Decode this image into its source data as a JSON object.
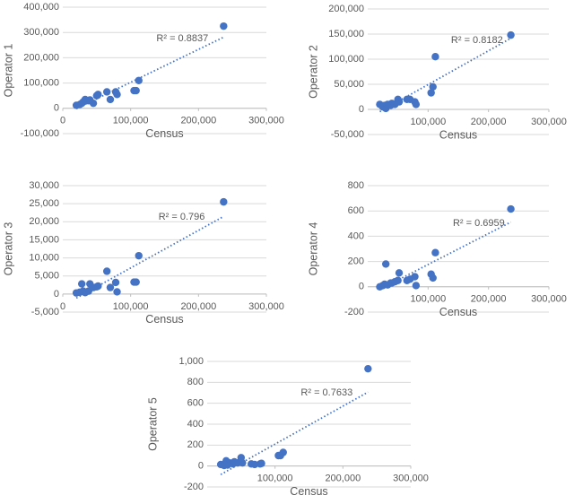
{
  "chart_data": [
    {
      "type": "scatter",
      "x_label": "Census",
      "y_label": "Operator 1",
      "annotation": "R² = 0.8837",
      "color": "#4472c4",
      "grid": true,
      "trendline": true,
      "x": [
        20000,
        25000,
        28000,
        30000,
        33000,
        38000,
        40000,
        45000,
        50000,
        52000,
        65000,
        70000,
        78000,
        80000,
        105000,
        108000,
        112000,
        237000
      ],
      "values": [
        12000,
        15000,
        20000,
        25000,
        35000,
        30000,
        33000,
        20000,
        50000,
        55000,
        65000,
        35000,
        65000,
        55000,
        70000,
        70000,
        110000,
        325000
      ],
      "xlim": [
        0,
        300000
      ],
      "xticks": [
        0,
        {
          "value": 100000,
          "label": "100,000"
        },
        {
          "value": 200000,
          "label": "200,000"
        },
        {
          "value": 300000,
          "label": "300,000"
        }
      ],
      "ylim": [
        -100000,
        400000
      ],
      "yticks": [
        {
          "value": -100000,
          "label": "-100,000"
        },
        0,
        {
          "value": 100000,
          "label": "100,000"
        },
        {
          "value": 200000,
          "label": "200,000"
        },
        {
          "value": 300000,
          "label": "300,000"
        },
        {
          "value": 400000,
          "label": "400,000"
        }
      ]
    },
    {
      "type": "scatter",
      "x_label": "Census",
      "y_label": "Operator 2",
      "annotation": "R² = 0.8182",
      "color": "#4472c4",
      "grid": true,
      "trendline": true,
      "x": [
        20000,
        25000,
        28000,
        30000,
        33000,
        38000,
        40000,
        45000,
        50000,
        52000,
        65000,
        70000,
        78000,
        80000,
        105000,
        108000,
        112000,
        237000
      ],
      "values": [
        10000,
        5000,
        8000,
        2000,
        10000,
        8000,
        12000,
        10000,
        20000,
        15000,
        20000,
        20000,
        15000,
        10000,
        33000,
        45000,
        105000,
        148000
      ],
      "xlim": [
        0,
        300000
      ],
      "xticks": [
        {
          "value": 100000,
          "label": "100,000"
        },
        {
          "value": 200000,
          "label": "200,000"
        },
        {
          "value": 300000,
          "label": "300,000"
        }
      ],
      "ylim": [
        -50000,
        200000
      ],
      "yticks": [
        {
          "value": -50000,
          "label": "-50,000"
        },
        0,
        {
          "value": 50000,
          "label": "50,000"
        },
        {
          "value": 100000,
          "label": "100,000"
        },
        {
          "value": 150000,
          "label": "150,000"
        },
        {
          "value": 200000,
          "label": "200,000"
        }
      ]
    },
    {
      "type": "scatter",
      "x_label": "Census",
      "y_label": "Operator 3",
      "annotation": "R² = 0.796",
      "color": "#4472c4",
      "grid": true,
      "trendline": true,
      "x": [
        20000,
        25000,
        28000,
        30000,
        33000,
        38000,
        40000,
        45000,
        50000,
        52000,
        65000,
        70000,
        78000,
        80000,
        105000,
        108000,
        112000,
        237000
      ],
      "values": [
        300,
        500,
        2800,
        800,
        400,
        800,
        2800,
        1800,
        2000,
        2200,
        6300,
        1800,
        3200,
        600,
        3300,
        3300,
        10600,
        25500
      ],
      "xlim": [
        0,
        300000
      ],
      "xticks": [
        0,
        {
          "value": 100000,
          "label": "100,000"
        },
        {
          "value": 200000,
          "label": "200,000"
        },
        {
          "value": 300000,
          "label": "300,000"
        }
      ],
      "ylim": [
        -5000,
        30000
      ],
      "yticks": [
        {
          "value": -5000,
          "label": "-5,000"
        },
        0,
        {
          "value": 5000,
          "label": "5,000"
        },
        {
          "value": 10000,
          "label": "10,000"
        },
        {
          "value": 15000,
          "label": "15,000"
        },
        {
          "value": 20000,
          "label": "20,000"
        },
        {
          "value": 25000,
          "label": "25,000"
        },
        {
          "value": 30000,
          "label": "30,000"
        }
      ]
    },
    {
      "type": "scatter",
      "x_label": "Census",
      "y_label": "Operator 4",
      "annotation": "R² = 0.6959",
      "color": "#4472c4",
      "grid": true,
      "trendline": true,
      "x": [
        20000,
        25000,
        28000,
        30000,
        33000,
        38000,
        40000,
        45000,
        50000,
        52000,
        65000,
        70000,
        78000,
        80000,
        105000,
        108000,
        112000,
        237000
      ],
      "values": [
        0,
        10,
        20,
        180,
        15,
        30,
        30,
        40,
        50,
        110,
        50,
        60,
        80,
        10,
        100,
        70,
        270,
        615
      ],
      "xlim": [
        0,
        300000
      ],
      "xticks": [
        {
          "value": 100000,
          "label": "100,000"
        },
        {
          "value": 200000,
          "label": "200,000"
        },
        {
          "value": 300000,
          "label": "300,000"
        }
      ],
      "ylim": [
        -200,
        800
      ],
      "yticks": [
        -200,
        0,
        200,
        400,
        600,
        800
      ]
    },
    {
      "type": "scatter",
      "x_label": "Census",
      "y_label": "Operator 5",
      "annotation": "R² = 0.7633",
      "color": "#4472c4",
      "grid": true,
      "trendline": true,
      "x": [
        20000,
        25000,
        28000,
        30000,
        33000,
        38000,
        40000,
        45000,
        50000,
        52000,
        65000,
        70000,
        78000,
        80000,
        105000,
        108000,
        112000,
        237000
      ],
      "values": [
        15,
        5,
        50,
        10,
        30,
        20,
        40,
        30,
        80,
        30,
        20,
        15,
        20,
        25,
        100,
        100,
        130,
        930
      ],
      "xlim": [
        0,
        300000
      ],
      "xticks": [
        {
          "value": 100000,
          "label": "100,000"
        },
        {
          "value": 200000,
          "label": "200,000"
        },
        {
          "value": 300000,
          "label": "300,000"
        }
      ],
      "ylim": [
        -200,
        1000
      ],
      "yticks": [
        -200,
        0,
        200,
        400,
        600,
        800,
        {
          "value": 1000,
          "label": "1,000"
        }
      ]
    }
  ]
}
